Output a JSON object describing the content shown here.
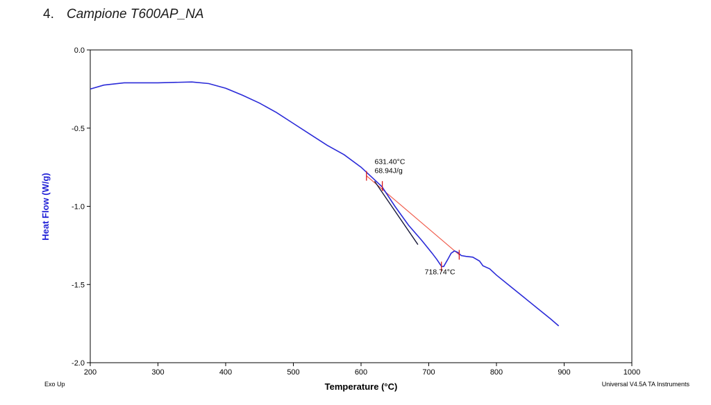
{
  "section": {
    "number": "4.",
    "title": "Campione T600AP_NA"
  },
  "footer": {
    "left": "Exo Up",
    "right": "Universal V4.5A TA Instruments"
  },
  "colors": {
    "trace": "#2a2ad8",
    "baseline": "#f05a4a",
    "tangent": "#1a1a3a",
    "marker": "#d81818"
  },
  "chart_data": {
    "type": "line",
    "xlabel": "Temperature (°C)",
    "ylabel": "Heat Flow (W/g)",
    "xlim": [
      200,
      1000
    ],
    "ylim": [
      -2.0,
      0.0
    ],
    "xticks": [
      200,
      300,
      400,
      500,
      600,
      700,
      800,
      900,
      1000
    ],
    "yticks": [
      0.0,
      -0.5,
      -1.0,
      -1.5,
      -2.0
    ],
    "xtick_labels": [
      "200",
      "300",
      "400",
      "500",
      "600",
      "700",
      "800",
      "900",
      "1000"
    ],
    "ytick_labels": [
      "0.0",
      "-0.5",
      "-1.0",
      "-1.5",
      "-2.0"
    ],
    "grid": false,
    "series": [
      {
        "x": [
          200,
          220,
          250,
          300,
          350,
          375,
          400,
          425,
          450,
          475,
          500,
          525,
          550,
          575,
          600,
          615,
          631,
          650,
          670,
          690,
          705,
          712,
          719,
          722,
          728,
          733,
          738,
          743,
          748,
          755,
          765,
          775,
          780,
          790,
          800,
          820,
          840,
          860,
          880,
          892
        ],
        "y": [
          -0.25,
          -0.225,
          -0.21,
          -0.21,
          -0.205,
          -0.215,
          -0.245,
          -0.29,
          -0.34,
          -0.4,
          -0.47,
          -0.54,
          -0.61,
          -0.67,
          -0.75,
          -0.81,
          -0.875,
          -1.0,
          -1.12,
          -1.22,
          -1.3,
          -1.34,
          -1.385,
          -1.385,
          -1.34,
          -1.3,
          -1.285,
          -1.295,
          -1.315,
          -1.32,
          -1.325,
          -1.35,
          -1.38,
          -1.4,
          -1.44,
          -1.51,
          -1.58,
          -1.65,
          -1.72,
          -1.765
        ]
      }
    ],
    "baseline": {
      "x": [
        608,
        745
      ],
      "y": [
        -0.805,
        -1.31
      ]
    },
    "tangent": {
      "x": [
        620,
        684
      ],
      "y": [
        -0.84,
        -1.245
      ]
    },
    "markers": [
      {
        "x": 608,
        "y": -0.805
      },
      {
        "x": 631.4,
        "y": -0.87
      },
      {
        "x": 745,
        "y": -1.31
      },
      {
        "x": 718.74,
        "y": -1.385
      }
    ],
    "annotations": [
      {
        "lines": [
          "631.40°C",
          "68.94J/g"
        ],
        "x": 620,
        "y": -0.73
      },
      {
        "lines": [
          "718.74°C"
        ],
        "x": 694,
        "y": -1.435
      }
    ]
  }
}
